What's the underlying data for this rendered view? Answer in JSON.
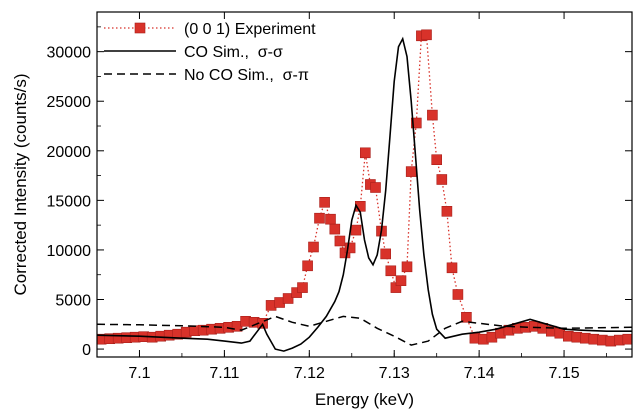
{
  "chart_data": {
    "type": "line",
    "xlabel": "Energy (keV)",
    "ylabel": "Corrected Intensity (counts/s)",
    "xlim": [
      7.095,
      7.158
    ],
    "ylim": [
      -800,
      34000
    ],
    "x_ticks": [
      7.1,
      7.11,
      7.12,
      7.13,
      7.14,
      7.15
    ],
    "y_ticks": [
      0,
      5000,
      10000,
      15000,
      20000,
      25000,
      30000
    ],
    "x_tick_labels": [
      "7.1",
      "7.11",
      "7.12",
      "7.13",
      "7.14",
      "7.15"
    ],
    "y_tick_labels": [
      "0",
      "5000",
      "10000",
      "15000",
      "20000",
      "25000",
      "30000"
    ],
    "legend_position": "top-left",
    "series": [
      {
        "name": "(0 0 1) Experiment",
        "style": "markers-dotted",
        "color": "#d8322a",
        "x": [
          7.0955,
          7.0965,
          7.0975,
          7.0985,
          7.0995,
          7.1005,
          7.1015,
          7.1025,
          7.1035,
          7.1045,
          7.1055,
          7.1065,
          7.1075,
          7.1085,
          7.1095,
          7.1105,
          7.1115,
          7.1125,
          7.1135,
          7.1145,
          7.1155,
          7.1165,
          7.1175,
          7.1185,
          7.1192,
          7.1198,
          7.1205,
          7.1212,
          7.1218,
          7.1225,
          7.123,
          7.1236,
          7.1242,
          7.1248,
          7.1255,
          7.126,
          7.1266,
          7.1272,
          7.1278,
          7.1285,
          7.129,
          7.1296,
          7.1302,
          7.1308,
          7.1315,
          7.132,
          7.1326,
          7.1332,
          7.1338,
          7.1345,
          7.135,
          7.1356,
          7.1362,
          7.1368,
          7.1375,
          7.1385,
          7.1395,
          7.1405,
          7.1415,
          7.1425,
          7.1435,
          7.1445,
          7.1455,
          7.1465,
          7.1475,
          7.1485,
          7.1495,
          7.1505,
          7.1515,
          7.1525,
          7.1535,
          7.1545,
          7.1555,
          7.1565,
          7.1575
        ],
        "y": [
          1000,
          1050,
          1100,
          1150,
          1200,
          1250,
          1200,
          1300,
          1400,
          1500,
          1700,
          1850,
          1900,
          2000,
          2100,
          2200,
          2300,
          2800,
          2700,
          2600,
          4400,
          4700,
          5100,
          5700,
          6200,
          8400,
          10300,
          13200,
          14800,
          13100,
          12100,
          10900,
          9700,
          10200,
          12000,
          14400,
          19800,
          16600,
          16300,
          11900,
          9600,
          7900,
          6200,
          6900,
          8300,
          17900,
          22800,
          31600,
          31700,
          23600,
          19100,
          17100,
          13900,
          8200,
          5500,
          3200,
          1100,
          1000,
          1200,
          1600,
          1900,
          2100,
          2200,
          2300,
          2100,
          1800,
          1600,
          1300,
          1200,
          1100,
          1000,
          900,
          800,
          900,
          1000
        ]
      },
      {
        "name": "CO Sim.,  σ-σ",
        "style": "solid",
        "color": "#000000",
        "x": [
          7.095,
          7.1,
          7.105,
          7.108,
          7.11,
          7.112,
          7.113,
          7.1145,
          7.115,
          7.116,
          7.117,
          7.118,
          7.119,
          7.12,
          7.121,
          7.122,
          7.123,
          7.1235,
          7.124,
          7.1245,
          7.125,
          7.1255,
          7.126,
          7.1265,
          7.127,
          7.1275,
          7.128,
          7.1285,
          7.129,
          7.1295,
          7.13,
          7.1305,
          7.131,
          7.1315,
          7.132,
          7.1325,
          7.133,
          7.1335,
          7.134,
          7.1345,
          7.135,
          7.136,
          7.137,
          7.138,
          7.139,
          7.14,
          7.142,
          7.144,
          7.146,
          7.148,
          7.15,
          7.152,
          7.155,
          7.158
        ],
        "y": [
          1400,
          1300,
          1100,
          1000,
          800,
          600,
          800,
          2500,
          1500,
          0,
          -200,
          100,
          500,
          1200,
          2200,
          3300,
          4800,
          5800,
          7500,
          10000,
          13000,
          14500,
          13800,
          11000,
          9200,
          8500,
          9500,
          12000,
          16000,
          21500,
          27000,
          30500,
          31300,
          29500,
          25000,
          19500,
          14000,
          9500,
          6000,
          3500,
          2000,
          1100,
          1300,
          1500,
          1600,
          1700,
          2000,
          2500,
          3000,
          2500,
          2000,
          1900,
          1800,
          1800
        ]
      },
      {
        "name": "No CO Sim.,  σ-π",
        "style": "dashed",
        "color": "#000000",
        "x": [
          7.095,
          7.1,
          7.105,
          7.11,
          7.112,
          7.114,
          7.116,
          7.118,
          7.12,
          7.122,
          7.124,
          7.126,
          7.128,
          7.13,
          7.132,
          7.134,
          7.136,
          7.138,
          7.14,
          7.143,
          7.146,
          7.15,
          7.154,
          7.158
        ],
        "y": [
          2500,
          2450,
          2350,
          2200,
          1900,
          2600,
          3300,
          2700,
          2300,
          2800,
          3300,
          3100,
          2100,
          1300,
          400,
          800,
          2100,
          2800,
          2600,
          2300,
          2200,
          2100,
          2150,
          2200
        ]
      }
    ]
  }
}
